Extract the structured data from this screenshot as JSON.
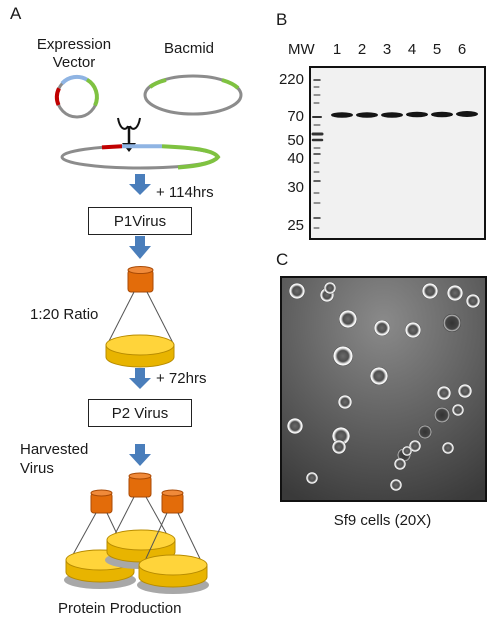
{
  "panels": {
    "a": "A",
    "b": "B",
    "c": "C"
  },
  "panelA": {
    "expression_vector": [
      "Expression",
      "Vector"
    ],
    "bacmid": "Bacmid",
    "time1": "+ 114hrs",
    "p1_virus": "P1Virus",
    "ratio": "1:20 Ratio",
    "time2": "+ 72hrs",
    "p2_virus": "P2 Virus",
    "harvested": [
      "Harvested",
      "Virus"
    ],
    "protein_production": "Protein Production"
  },
  "panelB": {
    "lanes": [
      "MW",
      "1",
      "2",
      "3",
      "4",
      "5",
      "6"
    ],
    "mw_markers": [
      "220",
      "70",
      "50",
      "40",
      "30",
      "25"
    ]
  },
  "panelC": {
    "caption": "Sf9 cells (20X)"
  },
  "colors": {
    "arrow": "#4a7ebb",
    "flask_orange": "#e36c0a",
    "liquid_yellow": "#f2c200",
    "plasmid_gray": "#8c8c8c",
    "insert_red": "#c00000",
    "insert_blue": "#8fb4e3",
    "insert_green": "#7fc241"
  }
}
